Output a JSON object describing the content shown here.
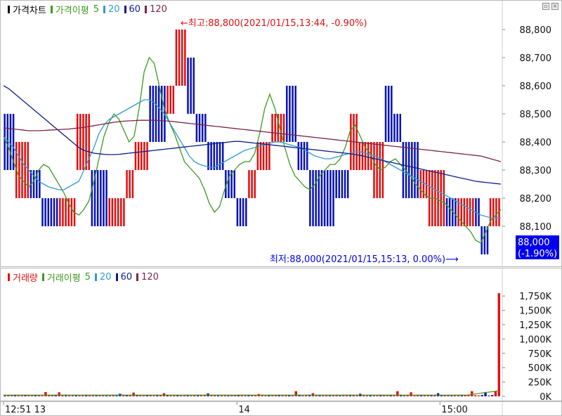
{
  "price_panel": {
    "legend": [
      {
        "label": "가격차트",
        "color": "#000000"
      },
      {
        "label": "가격이평",
        "color": "#3c9a1e"
      },
      {
        "label": "5",
        "color": "#3c9a1e"
      },
      {
        "label": "20",
        "color": "#2f9bd6"
      },
      {
        "label": "60",
        "color": "#0a1e8c"
      },
      {
        "label": "120",
        "color": "#7a2448"
      }
    ],
    "high_annotation": "←최고:88,800(2021/01/15,13:44, -0.90%)",
    "low_annotation": "최저:88,000(2021/01/15,15:13, 0.00%)⟶",
    "last_price": "88,000",
    "last_change": "(-1.90%)"
  },
  "volume_panel": {
    "legend": [
      {
        "label": "거래량",
        "color": "#e01010"
      },
      {
        "label": "거래이평",
        "color": "#3c9a1e"
      },
      {
        "label": "5",
        "color": "#3c9a1e"
      },
      {
        "label": "20",
        "color": "#2f9bd6"
      },
      {
        "label": "60",
        "color": "#0a1e8c"
      },
      {
        "label": "120",
        "color": "#7a2448"
      }
    ]
  },
  "x_axis": {
    "labels": [
      {
        "text": "12:51 13",
        "i": 0
      },
      {
        "text": "14",
        "i": 69
      },
      {
        "text": "15:00",
        "i": 129
      }
    ]
  },
  "colors": {
    "up": "#e01010",
    "down": "#0a14b4",
    "ma5": "#3c9a1e",
    "ma20": "#2f9bd6",
    "ma60": "#0a1e8c",
    "ma120": "#7a2448",
    "highlight": "#0000ee"
  },
  "chart_data": [
    {
      "type": "candlestick",
      "title": "",
      "ylim": [
        88000,
        88800
      ],
      "yticks": [
        88100,
        88200,
        88300,
        88400,
        88500,
        88600,
        88700,
        88800
      ],
      "ytick_labels": [
        "88,100",
        "88,200",
        "88,300",
        "88,400",
        "88,500",
        "88,600",
        "88,700",
        "88,800"
      ],
      "segments": [
        {
          "n": 4,
          "dir": "down",
          "hi": 88500,
          "lo": 88300
        },
        {
          "n": 5,
          "dir": "up",
          "hi": 88400,
          "lo": 88200
        },
        {
          "n": 4,
          "dir": "down",
          "hi": 88300,
          "lo": 88200
        },
        {
          "n": 6,
          "dir": "down",
          "hi": 88200,
          "lo": 88100
        },
        {
          "n": 6,
          "dir": "up",
          "hi": 88200,
          "lo": 88100
        },
        {
          "n": 5,
          "dir": "up",
          "hi": 88500,
          "lo": 88300
        },
        {
          "n": 6,
          "dir": "down",
          "hi": 88300,
          "lo": 88100
        },
        {
          "n": 6,
          "dir": "up",
          "hi": 88200,
          "lo": 88100
        },
        {
          "n": 3,
          "dir": "up",
          "hi": 88300,
          "lo": 88200
        },
        {
          "n": 5,
          "dir": "up",
          "hi": 88400,
          "lo": 88300
        },
        {
          "n": 6,
          "dir": "down",
          "hi": 88600,
          "lo": 88400
        },
        {
          "n": 3,
          "dir": "up",
          "hi": 88600,
          "lo": 88500
        },
        {
          "n": 4,
          "dir": "up",
          "hi": 88800,
          "lo": 88600
        },
        {
          "n": 3,
          "dir": "down",
          "hi": 88700,
          "lo": 88500
        },
        {
          "n": 4,
          "dir": "down",
          "hi": 88500,
          "lo": 88400
        },
        {
          "n": 6,
          "dir": "down",
          "hi": 88400,
          "lo": 88300
        },
        {
          "n": 4,
          "dir": "down",
          "hi": 88300,
          "lo": 88200
        },
        {
          "n": 4,
          "dir": "down",
          "hi": 88200,
          "lo": 88100
        },
        {
          "n": 3,
          "dir": "up",
          "hi": 88300,
          "lo": 88200
        },
        {
          "n": 5,
          "dir": "up",
          "hi": 88400,
          "lo": 88300
        },
        {
          "n": 5,
          "dir": "up",
          "hi": 88500,
          "lo": 88400
        },
        {
          "n": 4,
          "dir": "down",
          "hi": 88600,
          "lo": 88400
        },
        {
          "n": 4,
          "dir": "down",
          "hi": 88400,
          "lo": 88300
        },
        {
          "n": 5,
          "dir": "down",
          "hi": 88300,
          "lo": 88100
        },
        {
          "n": 4,
          "dir": "down",
          "hi": 88300,
          "lo": 88100
        },
        {
          "n": 5,
          "dir": "down",
          "hi": 88300,
          "lo": 88200
        },
        {
          "n": 3,
          "dir": "up",
          "hi": 88500,
          "lo": 88300
        },
        {
          "n": 5,
          "dir": "up",
          "hi": 88400,
          "lo": 88300
        },
        {
          "n": 4,
          "dir": "up",
          "hi": 88400,
          "lo": 88200
        },
        {
          "n": 3,
          "dir": "down",
          "hi": 88600,
          "lo": 88400
        },
        {
          "n": 3,
          "dir": "down",
          "hi": 88500,
          "lo": 88400
        },
        {
          "n": 6,
          "dir": "down",
          "hi": 88400,
          "lo": 88200
        },
        {
          "n": 3,
          "dir": "up",
          "hi": 88300,
          "lo": 88200
        },
        {
          "n": 6,
          "dir": "up",
          "hi": 88300,
          "lo": 88100
        },
        {
          "n": 4,
          "dir": "down",
          "hi": 88200,
          "lo": 88100
        },
        {
          "n": 6,
          "dir": "up",
          "hi": 88200,
          "lo": 88100
        },
        {
          "n": 2,
          "dir": "down",
          "hi": 88200,
          "lo": 88100
        },
        {
          "n": 3,
          "dir": "down",
          "hi": 88100,
          "lo": 88000
        },
        {
          "n": 4,
          "dir": "up",
          "hi": 88200,
          "lo": 88100
        }
      ],
      "ma_lines": [
        {
          "name": "5",
          "color": "#3c9a1e",
          "y": [
            88420,
            88380,
            88330,
            88280,
            88260,
            88240,
            88260,
            88300,
            88320,
            88310,
            88280,
            88250,
            88220,
            88180,
            88150,
            88140,
            88160,
            88190,
            88260,
            88340,
            88420,
            88470,
            88500,
            88480,
            88440,
            88400,
            88420,
            88520,
            88650,
            88700,
            88680,
            88600,
            88520,
            88470,
            88430,
            88380,
            88330,
            88310,
            88290,
            88270,
            88230,
            88180,
            88150,
            88170,
            88230,
            88280,
            88300,
            88320,
            88330,
            88330,
            88360,
            88430,
            88520,
            88570,
            88520,
            88450,
            88380,
            88320,
            88280,
            88260,
            88240,
            88230,
            88250,
            88280,
            88300,
            88320,
            88320,
            88340,
            88380,
            88440,
            88460,
            88420,
            88380,
            88360,
            88320,
            88300,
            88310,
            88330,
            88340,
            88320,
            88300,
            88280,
            88250,
            88230,
            88210,
            88200,
            88200,
            88190,
            88180,
            88160,
            88140,
            88120,
            88100,
            88080,
            88050,
            88040,
            88080,
            88120,
            88140,
            88160
          ]
        },
        {
          "name": "20",
          "color": "#2f9bd6",
          "y": [
            88420,
            88400,
            88380,
            88350,
            88320,
            88300,
            88280,
            88260,
            88250,
            88240,
            88235,
            88230,
            88230,
            88240,
            88250,
            88260,
            88300,
            88340,
            88380,
            88430,
            88460,
            88480,
            88490,
            88500,
            88510,
            88520,
            88530,
            88540,
            88550,
            88550,
            88540,
            88520,
            88500,
            88470,
            88440,
            88410,
            88380,
            88350,
            88330,
            88320,
            88315,
            88310,
            88310,
            88320,
            88330,
            88340,
            88350,
            88360,
            88370,
            88375,
            88380,
            88385,
            88390,
            88395,
            88400,
            88400,
            88395,
            88390,
            88385,
            88380,
            88370,
            88360,
            88350,
            88345,
            88340,
            88340,
            88345,
            88350,
            88355,
            88360,
            88365,
            88365,
            88360,
            88355,
            88350,
            88340,
            88330,
            88320,
            88310,
            88300,
            88290,
            88280,
            88270,
            88260,
            88250,
            88240,
            88230,
            88220,
            88210,
            88200,
            88190,
            88180,
            88170,
            88160,
            88150,
            88140,
            88135,
            88130,
            88130,
            88130
          ]
        },
        {
          "name": "60",
          "color": "#0a1e8c",
          "y": [
            88600,
            88590,
            88575,
            88560,
            88545,
            88530,
            88515,
            88500,
            88485,
            88470,
            88455,
            88440,
            88425,
            88410,
            88395,
            88380,
            88370,
            88365,
            88360,
            88358,
            88356,
            88355,
            88355,
            88356,
            88358,
            88360,
            88362,
            88364,
            88366,
            88368,
            88370,
            88372,
            88374,
            88376,
            88378,
            88380,
            88382,
            88384,
            88386,
            88388,
            88390,
            88392,
            88394,
            88396,
            88398,
            88400,
            88402,
            88402,
            88400,
            88398,
            88396,
            88394,
            88392,
            88390,
            88388,
            88386,
            88384,
            88382,
            88380,
            88378,
            88376,
            88374,
            88372,
            88370,
            88368,
            88366,
            88364,
            88362,
            88360,
            88358,
            88355,
            88352,
            88348,
            88344,
            88340,
            88336,
            88332,
            88328,
            88324,
            88320,
            88316,
            88312,
            88308,
            88304,
            88300,
            88296,
            88292,
            88288,
            88284,
            88280,
            88276,
            88272,
            88268,
            88264,
            88260,
            88258,
            88256,
            88254,
            88252,
            88250
          ]
        },
        {
          "name": "120",
          "color": "#7a2448",
          "y": [
            88450,
            88448,
            88446,
            88444,
            88442,
            88440,
            88440,
            88440,
            88441,
            88442,
            88443,
            88444,
            88445,
            88446,
            88448,
            88450,
            88452,
            88455,
            88458,
            88461,
            88464,
            88467,
            88470,
            88472,
            88474,
            88475,
            88476,
            88477,
            88477,
            88477,
            88477,
            88476,
            88475,
            88474,
            88472,
            88470,
            88468,
            88466,
            88464,
            88462,
            88460,
            88458,
            88456,
            88454,
            88452,
            88450,
            88448,
            88446,
            88444,
            88442,
            88440,
            88438,
            88436,
            88434,
            88432,
            88430,
            88428,
            88426,
            88424,
            88422,
            88420,
            88418,
            88416,
            88414,
            88412,
            88410,
            88408,
            88406,
            88404,
            88402,
            88400,
            88398,
            88396,
            88394,
            88392,
            88390,
            88388,
            88386,
            88384,
            88382,
            88380,
            88378,
            88376,
            88374,
            88372,
            88370,
            88368,
            88366,
            88364,
            88362,
            88360,
            88358,
            88356,
            88354,
            88352,
            88350,
            88345,
            88340,
            88335,
            88330
          ]
        }
      ],
      "high": {
        "value": 88800,
        "time": "2021/01/15,13:44",
        "change": "-0.90%"
      },
      "low": {
        "value": 88000,
        "time": "2021/01/15,15:13",
        "change": "0.00%"
      },
      "last": {
        "value": 88000,
        "change": "-1.90%"
      }
    },
    {
      "type": "bar",
      "title": "",
      "ylim": [
        0,
        1900
      ],
      "yticks": [
        0,
        250,
        500,
        750,
        1000,
        1250,
        1500,
        1750
      ],
      "ytick_labels": [
        "0K",
        "250K",
        "500K",
        "750K",
        "1,000K",
        "1,250K",
        "1,500K",
        "1,750K"
      ],
      "unit": "K",
      "spikes": [
        {
          "i": 12,
          "v": 75,
          "dir": "up"
        },
        {
          "i": 16,
          "v": 70,
          "dir": "up"
        },
        {
          "i": 34,
          "v": 45,
          "dir": "down"
        },
        {
          "i": 38,
          "v": 65,
          "dir": "up"
        },
        {
          "i": 47,
          "v": 55,
          "dir": "up"
        },
        {
          "i": 60,
          "v": 50,
          "dir": "down"
        },
        {
          "i": 75,
          "v": 40,
          "dir": "up"
        },
        {
          "i": 86,
          "v": 90,
          "dir": "up"
        },
        {
          "i": 91,
          "v": 55,
          "dir": "up"
        },
        {
          "i": 105,
          "v": 45,
          "dir": "down"
        },
        {
          "i": 116,
          "v": 90,
          "dir": "up"
        },
        {
          "i": 120,
          "v": 70,
          "dir": "up"
        },
        {
          "i": 128,
          "v": 55,
          "dir": "down"
        },
        {
          "i": 138,
          "v": 90,
          "dir": "up"
        },
        {
          "i": 142,
          "v": 75,
          "dir": "down"
        },
        {
          "i": 145,
          "v": 90,
          "dir": "up"
        },
        {
          "i": 146,
          "v": 1800,
          "dir": "up"
        }
      ],
      "base_volume": 15,
      "total_bars": 147
    }
  ]
}
